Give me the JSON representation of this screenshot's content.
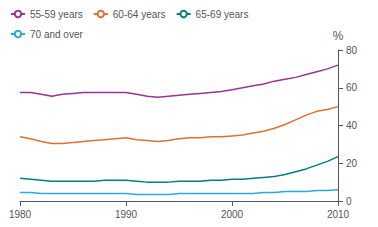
{
  "chart_data": {
    "type": "line",
    "x": [
      1980,
      1981,
      1982,
      1983,
      1984,
      1985,
      1986,
      1987,
      1988,
      1989,
      1990,
      1991,
      1992,
      1993,
      1994,
      1995,
      1996,
      1997,
      1998,
      1999,
      2000,
      2001,
      2002,
      2003,
      2004,
      2005,
      2006,
      2007,
      2008,
      2009,
      2010
    ],
    "series": [
      {
        "name": "55-59 years",
        "color": "#993399",
        "values": [
          57.5,
          57.5,
          56.5,
          55.5,
          56.5,
          57.0,
          57.5,
          57.5,
          57.5,
          57.5,
          57.5,
          56.5,
          55.5,
          55.0,
          55.5,
          56.0,
          56.5,
          57.0,
          57.5,
          58.0,
          59.0,
          60.0,
          61.0,
          62.0,
          63.5,
          64.5,
          65.5,
          67.0,
          68.5,
          70.0,
          72.0
        ]
      },
      {
        "name": "60-64 years",
        "color": "#e07030",
        "values": [
          34.0,
          33.0,
          31.5,
          30.5,
          30.5,
          31.0,
          31.5,
          32.0,
          32.5,
          33.0,
          33.5,
          32.5,
          32.0,
          31.5,
          32.0,
          33.0,
          33.5,
          33.5,
          34.0,
          34.0,
          34.5,
          35.0,
          36.0,
          37.0,
          38.5,
          40.5,
          43.0,
          45.5,
          47.5,
          48.5,
          50.0
        ]
      },
      {
        "name": "65-69 years",
        "color": "#008080",
        "values": [
          12.0,
          11.5,
          11.0,
          10.5,
          10.5,
          10.5,
          10.5,
          10.5,
          11.0,
          11.0,
          11.0,
          10.5,
          10.0,
          10.0,
          10.0,
          10.5,
          10.5,
          10.5,
          11.0,
          11.0,
          11.5,
          11.5,
          12.0,
          12.5,
          13.0,
          14.0,
          15.5,
          17.0,
          19.0,
          21.0,
          23.5
        ]
      },
      {
        "name": "70 and over",
        "color": "#29abe2",
        "values": [
          4.5,
          4.5,
          4.0,
          4.0,
          4.0,
          4.0,
          4.0,
          4.0,
          4.0,
          4.0,
          4.0,
          3.5,
          3.5,
          3.5,
          3.5,
          4.0,
          4.0,
          4.0,
          4.0,
          4.0,
          4.0,
          4.0,
          4.0,
          4.5,
          4.5,
          5.0,
          5.0,
          5.0,
          5.5,
          5.5,
          6.0
        ]
      }
    ],
    "ylabel": "%",
    "xlim": [
      1980,
      2010
    ],
    "ylim": [
      0,
      80
    ],
    "xticks": [
      1980,
      1990,
      2000,
      2010
    ],
    "yticks": [
      0,
      20,
      40,
      60,
      80
    ],
    "grid": false,
    "legend": "upper left"
  }
}
